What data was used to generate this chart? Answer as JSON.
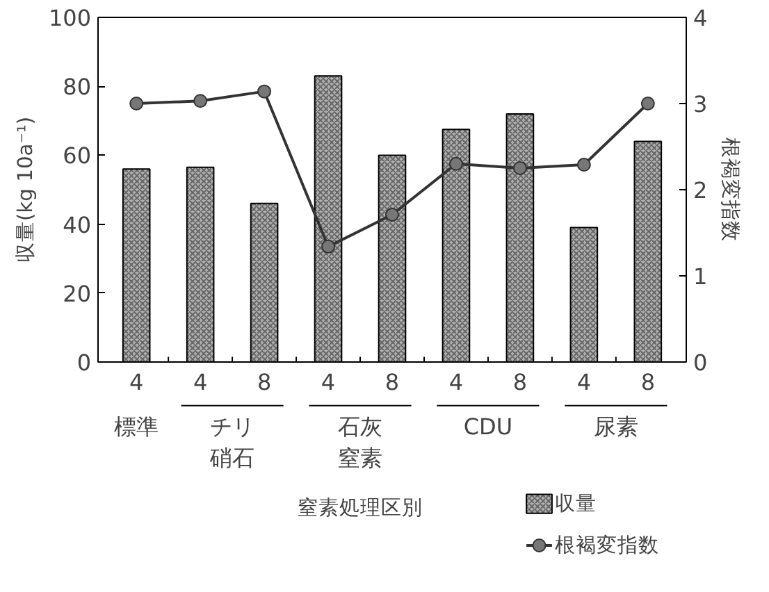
{
  "chart_data": {
    "type": "bar",
    "xlabel": "窒素処理区別",
    "ylabel": "収量(kg 10a⁻¹)",
    "y2label": "根褐変指数",
    "categories": [
      "4",
      "4",
      "8",
      "4",
      "8",
      "4",
      "8",
      "4",
      "8"
    ],
    "annotations": [
      "標準",
      "チリ硝石",
      "石灰窒素",
      "CDU",
      "尿素"
    ],
    "series": [
      {
        "name": "収量",
        "color": "#b0b0b0",
        "values": [
          56,
          56.5,
          46,
          83,
          60,
          67.5,
          72,
          39,
          64
        ]
      },
      {
        "name": "根褐変指数",
        "type": "line",
        "axis": "y2",
        "color": "#333333",
        "values": [
          3.0,
          3.03,
          3.14,
          1.34,
          1.71,
          2.3,
          2.25,
          2.29,
          3.0
        ]
      }
    ],
    "ylim": [
      0,
      100
    ],
    "yticks": [
      0,
      20,
      40,
      60,
      80,
      100
    ],
    "y2lim": [
      0,
      4
    ],
    "y2ticks": [
      0,
      1,
      2,
      3,
      4
    ],
    "marker": "circle",
    "legend": "bottom right",
    "grid": false
  }
}
